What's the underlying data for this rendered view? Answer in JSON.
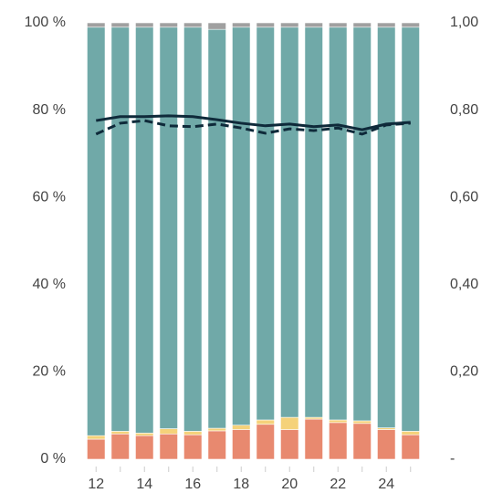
{
  "chart_data": {
    "type": "bar",
    "stacked": true,
    "categories": [
      "12",
      null,
      "14",
      null,
      "16",
      null,
      "18",
      null,
      "20",
      null,
      "22",
      null,
      "24",
      null
    ],
    "series": [
      {
        "color": "#e8896f",
        "values": [
          4.6,
          5.8,
          5.4,
          5.8,
          5.6,
          6.5,
          6.8,
          8.0,
          6.8,
          9.2,
          8.4,
          8.2,
          6.8,
          5.6
        ]
      },
      {
        "color": "#f5d27a",
        "values": [
          0.8,
          0.6,
          0.6,
          1.2,
          0.8,
          0.6,
          1.0,
          1.0,
          2.8,
          0.4,
          0.6,
          0.6,
          0.4,
          0.8
        ]
      },
      {
        "color": "#70a9a8",
        "values": [
          93.6,
          92.6,
          93.0,
          92.0,
          92.6,
          91.4,
          91.2,
          90.0,
          89.4,
          89.4,
          90.0,
          90.2,
          91.8,
          92.6
        ]
      },
      {
        "color": "#a0a0a0",
        "values": [
          1.0,
          1.0,
          1.0,
          1.0,
          1.0,
          1.5,
          1.0,
          1.0,
          1.0,
          1.0,
          1.0,
          1.0,
          1.0,
          1.0
        ]
      },
      {
        "type": "line",
        "axis": "y2",
        "color": "#0f2a3a",
        "dash": false,
        "values": [
          0.776,
          0.785,
          0.785,
          0.787,
          0.785,
          0.778,
          0.77,
          0.764,
          0.768,
          0.762,
          0.766,
          0.755,
          0.768,
          0.772
        ]
      },
      {
        "type": "line",
        "axis": "y2",
        "color": "#0f2a3a",
        "dash": true,
        "values": [
          0.745,
          0.77,
          0.776,
          0.764,
          0.762,
          0.768,
          0.759,
          0.747,
          0.757,
          0.753,
          0.759,
          0.745,
          0.766,
          0.77
        ]
      }
    ],
    "ylim": [
      0,
      100
    ],
    "yticks": [
      {
        "value": 0,
        "label": "0 %"
      },
      {
        "value": 20,
        "label": "20 %"
      },
      {
        "value": 40,
        "label": "40 %"
      },
      {
        "value": 60,
        "label": "60 %"
      },
      {
        "value": 80,
        "label": "80 %"
      },
      {
        "value": 100,
        "label": "100 %"
      }
    ],
    "y2lim": [
      0,
      1
    ],
    "y2ticks": [
      {
        "value": 0,
        "label": "-"
      },
      {
        "value": 0.2,
        "label": "0,20"
      },
      {
        "value": 0.4,
        "label": "0,40"
      },
      {
        "value": 0.6,
        "label": "0,60"
      },
      {
        "value": 0.8,
        "label": "0,80"
      },
      {
        "value": 1,
        "label": "1,00"
      }
    ]
  }
}
